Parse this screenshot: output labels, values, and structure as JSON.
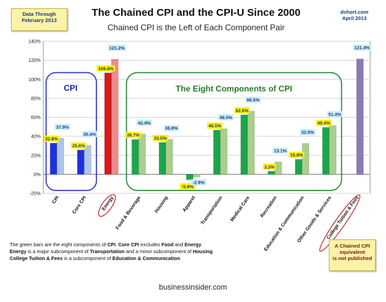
{
  "header": {
    "title": "The Chained CPI and the CPI-U Since 2000",
    "subtitle": "Chained CPI is the Left of Each Component Pair",
    "data_through_line1": "Data Through",
    "data_through_line2": "February 2013",
    "source_line1": "dshort.com",
    "source_line2": "April 2013"
  },
  "annotations": {
    "cpi_group_label": "CPI",
    "components_group_label": "The Eight Components of CPI",
    "question_mark": "?",
    "callout_line1": "A Chained CPI",
    "callout_line2": "equivalent",
    "callout_line3": "is not published"
  },
  "caption": {
    "line1_a": "The green bars are the eight components of ",
    "line1_b": "CPI",
    "line1_c": ". ",
    "line1_d": "Core CPI",
    "line1_e": " excludes ",
    "line1_f": "Food",
    "line1_g": " and ",
    "line1_h": "Energy",
    "line1_i": ".",
    "line2_a": "Energy",
    "line2_b": " is a major subcomponent of ",
    "line2_c": "Transportation",
    "line2_d": " and a minor subcomponent of ",
    "line2_e": "Housing",
    "line2_f": ".",
    "line3_a": "College Tuition & Fees",
    "line3_b": " is a subcomponent of ",
    "line3_c": "Education & Communication",
    "line3_d": "."
  },
  "watermark": "businessinsider.com",
  "colors": {
    "cpi_chained": "#1f2fe0",
    "cpi_u": "#aec4ec",
    "energy_chained": "#d61a1a",
    "energy_u": "#f08a8a",
    "component_chained": "#1aa64b",
    "component_u": "#a9cf8e",
    "tuition": "#8b7bb3",
    "label_highlight_yellow": "#fff200",
    "label_highlight_blue": "#c9eefc"
  },
  "chart_data": {
    "type": "bar",
    "categories": [
      "CPI",
      "Core CPI",
      "Energy",
      "Food & Beverage",
      "Housing",
      "Apparel",
      "Transportation",
      "Medical Care",
      "Recreation",
      "Education & Communication",
      "Other Goods & Services",
      "College Tuition & Fees"
    ],
    "series": [
      {
        "values": [
          32.8,
          25.6,
          106.8,
          36.7,
          33.5,
          -5.8,
          46.5,
          62.6,
          3.3,
          15.8,
          49.4,
          null
        ],
        "labels": [
          "32.8%",
          "25.6%",
          "106.8%",
          "36.7%",
          "33.5%",
          "-5.8%",
          "46.5%",
          "62.6%",
          "3.3%",
          "15.8%",
          "49.4%",
          ""
        ]
      },
      {
        "values": [
          37.9,
          30.4,
          121.2,
          42.4,
          36.8,
          -2.9,
          48.0,
          66.5,
          13.1,
          32.5,
          51.4,
          121.4
        ],
        "labels": [
          "37.9%",
          "30.4%",
          "121.2%",
          "42.4%",
          "36.8%",
          "-2.9%",
          "48.0%",
          "66.5%",
          "13.1%",
          "32.5%",
          "51.4%",
          "121.4%"
        ]
      }
    ],
    "y_ticks": [
      "-20%",
      "0%",
      "20%",
      "40%",
      "60%",
      "80%",
      "100%",
      "120%",
      "140%"
    ],
    "ylim": [
      -20,
      140
    ],
    "grid": true
  }
}
